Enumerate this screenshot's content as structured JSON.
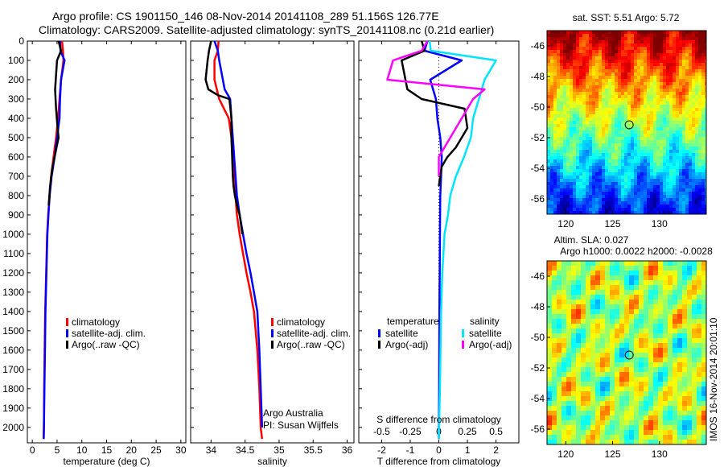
{
  "header": {
    "line1": "Argo profile: CS 1901150_146 08-Nov-2014 20141108_289 51.156S 126.77E",
    "line2": "Climatology: CARS2009. Satellite-adjusted climatology: synTS_20141108.nc (0.21d earlier)"
  },
  "colors": {
    "climatology": "#ff0000",
    "satellite": "#0000ff",
    "argo": "#000000",
    "satellite_salinity": "#00e5ff",
    "argo_salinity": "#ff00ff"
  },
  "chart_data": [
    {
      "id": "temperature",
      "type": "line",
      "xlabel": "temperature (deg C)",
      "ylabel": "",
      "xlim": [
        -1,
        31
      ],
      "ylim": [
        2080,
        0
      ],
      "x_ticks": [
        "0",
        "5",
        "10",
        "15",
        "20",
        "25",
        "30"
      ],
      "y_ticks": [
        "0",
        "100",
        "200",
        "300",
        "400",
        "500",
        "600",
        "700",
        "800",
        "900",
        "1000",
        "1100",
        "1200",
        "1300",
        "1400",
        "1500",
        "1600",
        "1700",
        "1800",
        "1900",
        "2000"
      ],
      "legend": [
        "climatology",
        "satellite-adj. clim.",
        "Argo(..raw -QC)"
      ],
      "series": [
        {
          "name": "climatology",
          "color": "#ff0000",
          "x": [
            6.0,
            6.2,
            6.3,
            5.8,
            5.5,
            5.2,
            4.8,
            4.3,
            3.8,
            3.5,
            3.2,
            3.0,
            2.8,
            2.6,
            2.5,
            2.4,
            2.35,
            2.3
          ],
          "y": [
            0,
            50,
            100,
            200,
            300,
            400,
            500,
            600,
            700,
            800,
            900,
            1000,
            1200,
            1400,
            1600,
            1800,
            2000,
            2060
          ]
        },
        {
          "name": "satellite-adj. clim.",
          "color": "#0000ff",
          "x": [
            5.6,
            5.7,
            6.5,
            5.8,
            5.6,
            5.5,
            5.0,
            4.5,
            3.9,
            3.5,
            3.25,
            3.05,
            2.85,
            2.65,
            2.55,
            2.45,
            2.35,
            2.3
          ],
          "y": [
            0,
            50,
            100,
            200,
            300,
            400,
            500,
            600,
            700,
            800,
            900,
            1000,
            1200,
            1400,
            1600,
            1800,
            2000,
            2060
          ]
        },
        {
          "name": "Argo(..raw -QC)",
          "color": "#000000",
          "x": [
            5.3,
            5.8,
            5.0,
            4.6,
            4.8,
            5.1,
            5.3,
            4.9,
            4.5,
            4.1,
            3.6,
            3.3
          ],
          "y": [
            0,
            50,
            100,
            250,
            350,
            450,
            500,
            550,
            600,
            650,
            750,
            850
          ]
        }
      ]
    },
    {
      "id": "salinity",
      "type": "line",
      "xlabel": "salinity",
      "ylabel": "",
      "xlim": [
        33.7,
        36.1
      ],
      "ylim": [
        2080,
        0
      ],
      "x_ticks": [
        "34",
        "34.5",
        "35",
        "35.5",
        "36"
      ],
      "legend": [
        "climatology",
        "satellite-adj. clim.",
        "Argo(..raw -QC)"
      ],
      "annotations": [
        "Argo Australia",
        "PI: Susan Wijffels"
      ],
      "series": [
        {
          "name": "climatology",
          "color": "#ff0000",
          "x": [
            34.11,
            34.1,
            34.05,
            34.05,
            34.12,
            34.26,
            34.3,
            34.32,
            34.34,
            34.36,
            34.38,
            34.42,
            34.47,
            34.52,
            34.58,
            34.63,
            34.68,
            34.71,
            34.73,
            34.75
          ],
          "y": [
            0,
            50,
            100,
            200,
            300,
            400,
            500,
            600,
            700,
            800,
            900,
            1000,
            1100,
            1200,
            1300,
            1400,
            1600,
            1800,
            2000,
            2060
          ]
        },
        {
          "name": "satellite-adj. clim.",
          "color": "#0000ff",
          "x": [
            34.05,
            34.1,
            34.12,
            34.2,
            34.28,
            34.3,
            34.32,
            34.34,
            34.36,
            34.38,
            34.42,
            34.47,
            34.52,
            34.58,
            34.63,
            34.68,
            34.71,
            34.73,
            34.75
          ],
          "y": [
            0,
            50,
            100,
            250,
            300,
            400,
            500,
            600,
            700,
            800,
            900,
            1000,
            1100,
            1200,
            1300,
            1400,
            1600,
            1800,
            2000
          ]
        },
        {
          "name": "Argo(..raw -QC)",
          "color": "#000000",
          "x": [
            34.0,
            33.97,
            33.95,
            33.92,
            33.96,
            34.1,
            34.27,
            34.3,
            34.3,
            34.31,
            34.32,
            34.33,
            34.35,
            34.38,
            34.42,
            34.46
          ],
          "y": [
            0,
            50,
            100,
            200,
            250,
            280,
            300,
            400,
            500,
            600,
            700,
            750,
            800,
            850,
            900,
            1000
          ]
        }
      ]
    },
    {
      "id": "differences",
      "type": "line",
      "xlabel": "T difference from climatology",
      "xlabel_top": "S difference from climatology",
      "xlim": [
        -2.8,
        2.8
      ],
      "ylim": [
        2080,
        0
      ],
      "x_ticks_T": [
        "-2",
        "-1",
        "0",
        "1",
        "2"
      ],
      "x_ticks_S": [
        "-0.5",
        "-0.25",
        "0",
        "0.25",
        "0.5"
      ],
      "legend": {
        "temperature_heading": "temperature",
        "salinity_heading": "salinity",
        "items": [
          "satellite",
          "Argo(-adj)",
          "satellite",
          "Argo(-adj)"
        ]
      },
      "series": [
        {
          "name": "temperature satellite",
          "color": "#0000ff",
          "x": [
            -0.4,
            -0.5,
            0.8,
            -0.3,
            -0.1,
            -0.05,
            0.05,
            0.1,
            0.08,
            0.05,
            0.04,
            0.03,
            0.02,
            0.01,
            0.0
          ],
          "y": [
            0,
            50,
            100,
            200,
            300,
            400,
            500,
            600,
            700,
            800,
            1000,
            1200,
            1400,
            1800,
            2060
          ]
        },
        {
          "name": "temperature Argo(-adj)",
          "color": "#000000",
          "x": [
            -0.6,
            -0.5,
            -1.3,
            -1.1,
            -0.6,
            0.9,
            1.0,
            0.8,
            0.6,
            0.3,
            0.1,
            0.0
          ],
          "y": [
            0,
            50,
            100,
            250,
            300,
            350,
            450,
            500,
            550,
            600,
            650,
            750
          ]
        },
        {
          "name": "salinity satellite",
          "color": "#00e5ff",
          "x": [
            -0.08,
            -0.07,
            0.5,
            0.4,
            0.35,
            0.3,
            0.28,
            0.22,
            0.15,
            0.1,
            0.08,
            0.05,
            0.03,
            0.02,
            0.01,
            0.0
          ],
          "y": [
            0,
            50,
            100,
            200,
            300,
            400,
            500,
            600,
            700,
            800,
            900,
            1000,
            1200,
            1400,
            1800,
            2060
          ]
        },
        {
          "name": "salinity Argo(-adj)",
          "color": "#ff00ff",
          "x": [
            -0.1,
            -0.15,
            -0.4,
            -0.45,
            0.4,
            0.3,
            0.2,
            0.1,
            0.0,
            0.0
          ],
          "y": [
            0,
            50,
            100,
            200,
            250,
            300,
            400,
            500,
            600,
            700
          ]
        }
      ]
    },
    {
      "id": "sst_map",
      "type": "heatmap",
      "title": "sat. SST: 5.51 Argo: 5.72",
      "xlim": [
        118,
        135
      ],
      "ylim": [
        -57,
        -45
      ],
      "x_ticks": [
        "120",
        "125",
        "130"
      ],
      "y_ticks": [
        "-46",
        "-48",
        "-50",
        "-52",
        "-54",
        "-56"
      ],
      "marker": {
        "lon": 126.77,
        "lat": -51.156
      }
    },
    {
      "id": "sla_map",
      "type": "heatmap",
      "title": "Altim. SLA: 0.027",
      "subtitle": "Argo h1000: 0.0022 h2000: -0.0028",
      "side_label": "IMOS 16-Nov-2014 20:01:10",
      "xlim": [
        118,
        135
      ],
      "ylim": [
        -57,
        -45
      ],
      "x_ticks": [
        "120",
        "125",
        "130"
      ],
      "y_ticks": [
        "-46",
        "-48",
        "-50",
        "-52",
        "-54",
        "-56"
      ],
      "marker": {
        "lon": 126.77,
        "lat": -51.156
      }
    }
  ]
}
